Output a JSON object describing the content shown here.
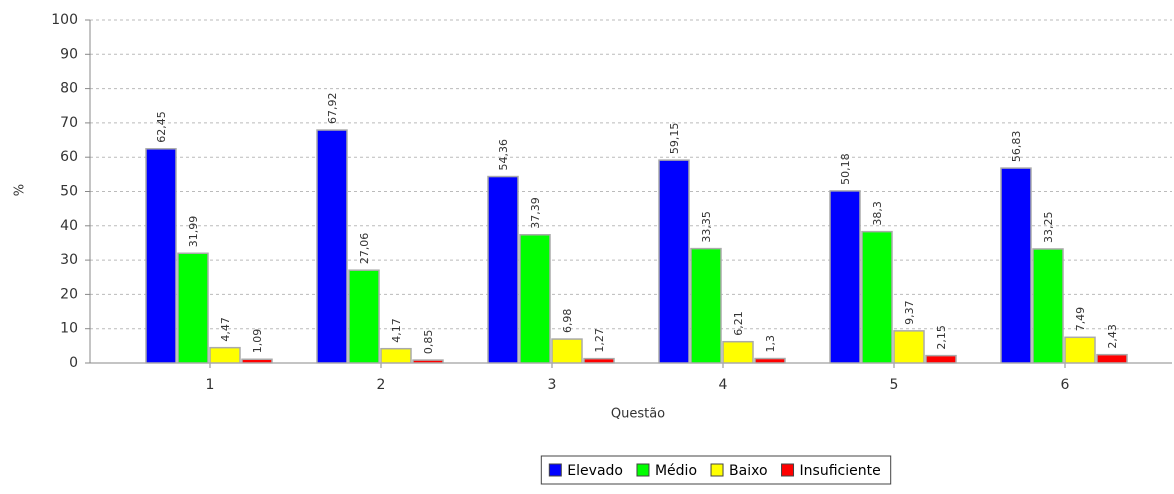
{
  "chart_data": {
    "type": "bar",
    "x_label": "Questão",
    "y_label": "%",
    "categories": [
      "1",
      "2",
      "3",
      "4",
      "5",
      "6"
    ],
    "series": [
      {
        "name": "Elevado",
        "color": "#0000ff",
        "values": [
          62.45,
          67.92,
          54.36,
          59.15,
          50.18,
          56.83
        ],
        "value_labels": [
          "62,45",
          "67,92",
          "54,36",
          "59,15",
          "50,18",
          "56,83"
        ]
      },
      {
        "name": "Médio",
        "color": "#00ff00",
        "values": [
          31.99,
          27.06,
          37.39,
          33.35,
          38.3,
          33.25
        ],
        "value_labels": [
          "31,99",
          "27,06",
          "37,39",
          "33,35",
          "38,3",
          "33,25"
        ]
      },
      {
        "name": "Baixo",
        "color": "#ffff00",
        "values": [
          4.47,
          4.17,
          6.98,
          6.21,
          9.37,
          7.49
        ],
        "value_labels": [
          "4,47",
          "4,17",
          "6,98",
          "6,21",
          "9,37",
          "7,49"
        ]
      },
      {
        "name": "Insuficiente",
        "color": "#ff0000",
        "values": [
          1.09,
          0.85,
          1.27,
          1.3,
          2.15,
          2.43
        ],
        "value_labels": [
          "1,09",
          "0,85",
          "1,27",
          "1,3",
          "2,15",
          "2,43"
        ]
      }
    ],
    "ylim": [
      0,
      100
    ],
    "yticks": [
      0,
      10,
      20,
      30,
      40,
      50,
      60,
      70,
      80,
      90,
      100
    ],
    "grid": true,
    "legend": "bottom"
  }
}
